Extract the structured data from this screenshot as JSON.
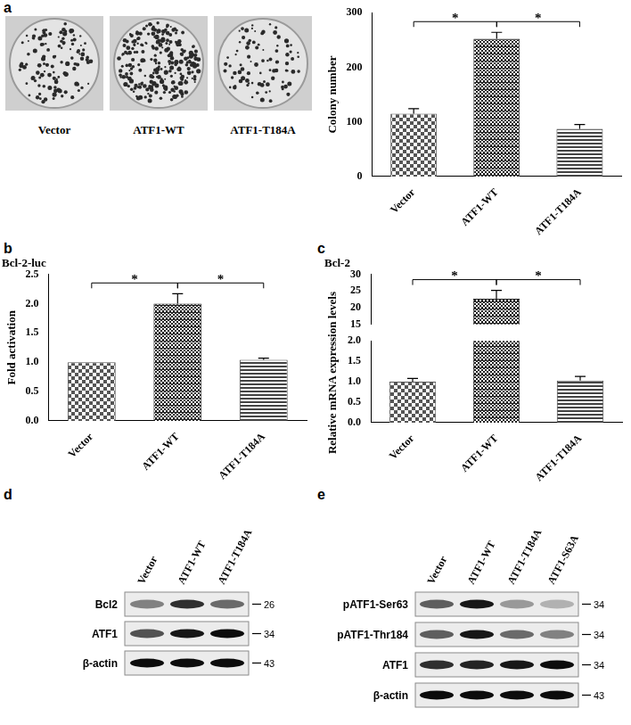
{
  "panel_labels": [
    "a",
    "b",
    "c",
    "d",
    "e"
  ],
  "plates": {
    "labels": [
      "Vector",
      "ATF1-WT",
      "ATF1-T184A"
    ]
  },
  "chart_data": [
    {
      "type": "bar",
      "ylabel": "Colony number",
      "categories": [
        "Vector",
        "ATF1-WT",
        "ATF1-T184A"
      ],
      "values": [
        115,
        252,
        87
      ],
      "errors": [
        9,
        12,
        8
      ],
      "colors": [
        "#555555",
        "#222222",
        "#444444"
      ],
      "ylim": [
        0,
        300
      ],
      "yticks": [
        0,
        100,
        200,
        300
      ],
      "grid": false,
      "annotations": [
        {
          "text": "*",
          "between": [
            "Vector",
            "ATF1-WT"
          ]
        },
        {
          "text": "*",
          "between": [
            "ATF1-WT",
            "ATF1-T184A"
          ]
        }
      ]
    },
    {
      "type": "bar",
      "title": "Bcl-2-luc",
      "ylabel": "Fold activation",
      "categories": [
        "Vector",
        "ATF1-WT",
        "ATF1-T184A"
      ],
      "values": [
        1.0,
        2.0,
        1.04
      ],
      "errors": [
        0,
        0.17,
        0.03
      ],
      "colors": [
        "#555555",
        "#222222",
        "#444444"
      ],
      "ylim": [
        0,
        2.5
      ],
      "yticks": [
        {
          "value": 0,
          "label": "0.0"
        },
        0.5,
        {
          "value": 1,
          "label": "1.0"
        },
        1.5,
        {
          "value": 2,
          "label": "2.0"
        },
        2.5
      ],
      "grid": false,
      "annotations": [
        {
          "text": "*",
          "between": [
            "Vector",
            "ATF1-WT"
          ]
        },
        {
          "text": "*",
          "between": [
            "ATF1-WT",
            "ATF1-T184A"
          ]
        }
      ]
    },
    {
      "type": "bar",
      "title": "Bcl-2",
      "ylabel": "Relative mRNA expression levels",
      "categories": [
        "Vector",
        "ATF1-WT",
        "ATF1-T184A"
      ],
      "values": [
        1.0,
        22.7,
        1.03
      ],
      "errors": [
        0.08,
        2.5,
        0.1
      ],
      "colors": [
        "#555555",
        "#222222",
        "#444444"
      ],
      "ylim": [
        [
          0,
          2
        ],
        [
          15,
          30
        ]
      ],
      "yticks": [
        [
          {
            "value": 0,
            "label": "0.0"
          },
          0.5,
          {
            "value": 1,
            "label": "1.0"
          },
          1.5,
          {
            "value": 2,
            "label": "2.0"
          }
        ],
        [
          15,
          20,
          25,
          30
        ]
      ],
      "grid": false,
      "annotations": [
        {
          "text": "*",
          "between": [
            "Vector",
            "ATF1-WT"
          ]
        },
        {
          "text": "*",
          "between": [
            "ATF1-WT",
            "ATF1-T184A"
          ]
        }
      ]
    }
  ],
  "blots": [
    {
      "columns": [
        "Vector",
        "ATF1-WT",
        "ATF1-T184A"
      ],
      "rows": [
        {
          "label": "Bcl2",
          "mw": 26,
          "bands": [
            0.45,
            0.8,
            0.55
          ]
        },
        {
          "label": "ATF1",
          "mw": 34,
          "bands": [
            0.65,
            0.9,
            0.95
          ]
        },
        {
          "label": "β-actin",
          "mw": 43,
          "bands": [
            0.95,
            0.95,
            0.95
          ]
        }
      ]
    },
    {
      "columns": [
        "Vector",
        "ATF1-WT",
        "ATF1-T184A",
        "ATF1-S63A"
      ],
      "rows": [
        {
          "label": "pATF1-Ser63",
          "mw": 34,
          "bands": [
            0.6,
            0.9,
            0.35,
            0.25
          ]
        },
        {
          "label": "pATF1-Thr184",
          "mw": 34,
          "bands": [
            0.6,
            0.9,
            0.55,
            0.45
          ]
        },
        {
          "label": "ATF1",
          "mw": 34,
          "bands": [
            0.8,
            0.85,
            0.9,
            0.95
          ]
        },
        {
          "label": "β-actin",
          "mw": 43,
          "bands": [
            0.95,
            0.95,
            0.95,
            0.95
          ]
        }
      ]
    }
  ]
}
